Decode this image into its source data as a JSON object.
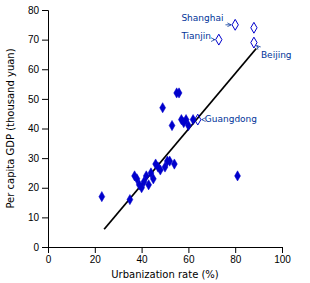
{
  "chart_data": {
    "type": "scatter",
    "xlabel": "Urbanization rate (%)",
    "ylabel": "Per capita GDP (thousand yuan)",
    "xlim": [
      0,
      100
    ],
    "ylim": [
      0,
      80
    ],
    "xticks": [
      0,
      20,
      40,
      60,
      80,
      100
    ],
    "yticks": [
      0,
      10,
      20,
      30,
      40,
      50,
      60,
      70,
      80
    ],
    "series": [
      {
        "type": "scatter",
        "marker": "diamond",
        "color": "#0000CC",
        "x": [
          23,
          35,
          37,
          38,
          39,
          40,
          41,
          42,
          43,
          44,
          45,
          46,
          47,
          48,
          49,
          50,
          51,
          52,
          53,
          54,
          55,
          56,
          57,
          58,
          59,
          60,
          62,
          81
        ],
        "values": [
          17,
          16,
          24,
          23,
          21,
          20,
          22,
          24,
          21,
          25,
          23,
          28,
          27,
          26,
          47,
          27,
          29,
          29,
          41,
          28,
          52,
          52,
          43,
          42,
          43,
          41,
          43,
          24
        ]
      },
      {
        "type": "scatter",
        "marker": "diamond_open",
        "color": "#0000CC",
        "x": [
          64,
          73,
          80,
          88,
          88
        ],
        "values": [
          43,
          70,
          75,
          74,
          69
        ]
      },
      {
        "type": "line",
        "color": "black",
        "x": [
          24,
          89
        ],
        "values": [
          6,
          67
        ]
      }
    ],
    "annotations": [
      {
        "text": "Shanghai",
        "x": 80,
        "y": 75,
        "text_x": 57,
        "text_y": 77,
        "color": "#003399"
      },
      {
        "text": "Tianjin",
        "x": 73,
        "y": 70,
        "text_x": 57,
        "text_y": 71,
        "color": "#003399"
      },
      {
        "text": "Beijing",
        "x": 88,
        "y": 69,
        "text_x": 91,
        "text_y": 66,
        "color": "#003399"
      },
      {
        "text": "Guangdong",
        "x": 64,
        "y": 43,
        "text_x": 67,
        "text_y": 43,
        "color": "#003399"
      }
    ]
  }
}
